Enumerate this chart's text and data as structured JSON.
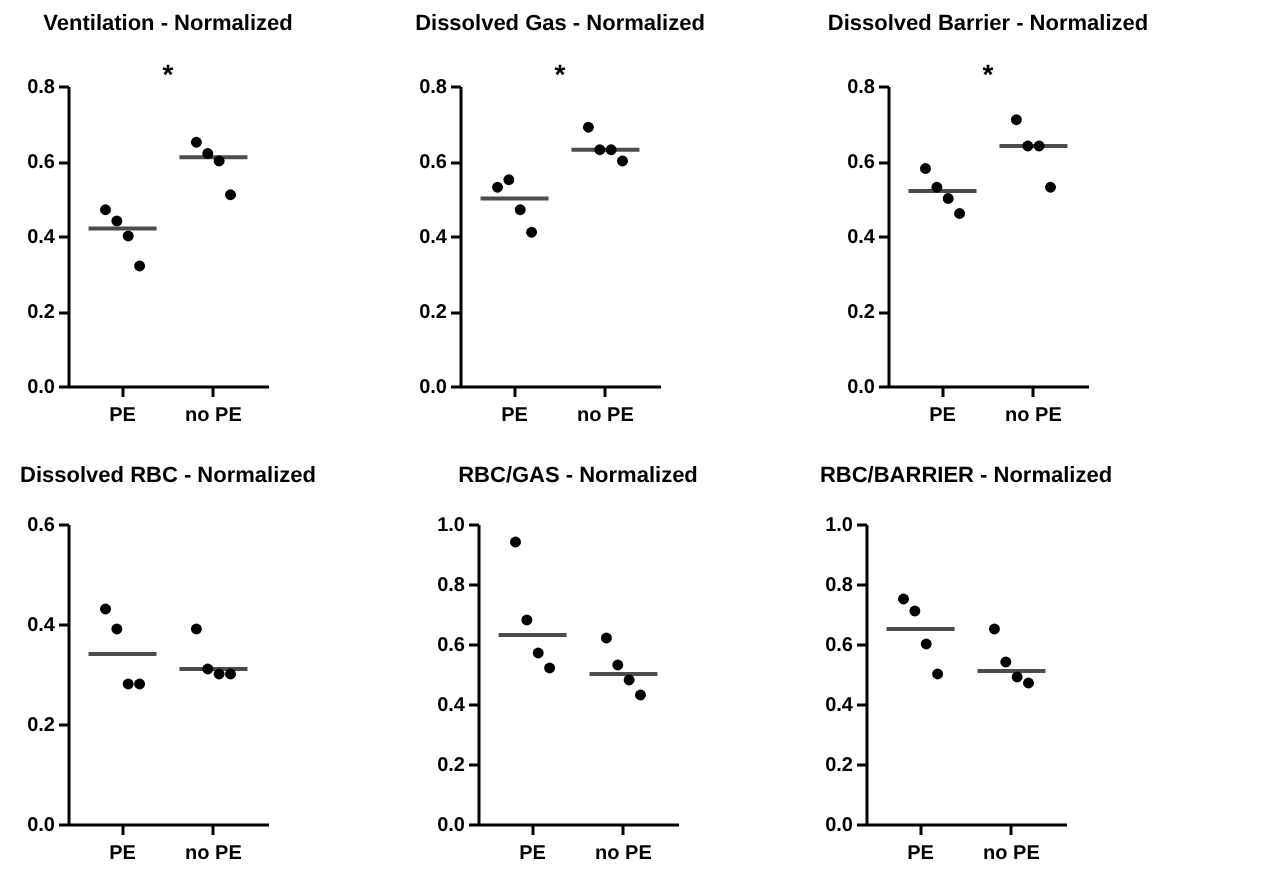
{
  "chart_data": [
    {
      "type": "box",
      "title": "Ventilation - Normalized",
      "categories": [
        "PE",
        "no PE"
      ],
      "boxes": [
        {
          "low": 0.42,
          "q1": 0.42,
          "median": 0.42,
          "q3": 0.42,
          "high": 0.42
        },
        {
          "low": 0.61,
          "q1": 0.61,
          "median": 0.61,
          "q3": 0.61,
          "high": 0.61
        }
      ],
      "series": [
        {
          "type": "scatter",
          "color": "#000000",
          "x": [
            "PE",
            "PE",
            "PE",
            "PE",
            "no PE",
            "no PE",
            "no PE",
            "no PE"
          ],
          "values": [
            0.47,
            0.44,
            0.4,
            0.32,
            0.65,
            0.62,
            0.6,
            0.51
          ]
        }
      ],
      "ylim": [
        0,
        0.8
      ],
      "yticks": [
        {
          "value": 0,
          "label": "0.0"
        },
        {
          "value": 0.2,
          "label": "0.2"
        },
        {
          "value": 0.4,
          "label": "0.4"
        },
        {
          "value": 0.6,
          "label": "0.6"
        },
        {
          "value": 0.8,
          "label": "0.8"
        }
      ],
      "grid": false,
      "marker": "circle",
      "annotations": [
        "*"
      ]
    },
    {
      "type": "box",
      "title": "Dissolved Gas - Normalized",
      "categories": [
        "PE",
        "no PE"
      ],
      "boxes": [
        {
          "low": 0.5,
          "q1": 0.5,
          "median": 0.5,
          "q3": 0.5,
          "high": 0.5
        },
        {
          "low": 0.63,
          "q1": 0.63,
          "median": 0.63,
          "q3": 0.63,
          "high": 0.63
        }
      ],
      "series": [
        {
          "type": "scatter",
          "color": "#000000",
          "x": [
            "PE",
            "PE",
            "PE",
            "PE",
            "no PE",
            "no PE",
            "no PE",
            "no PE"
          ],
          "values": [
            0.53,
            0.55,
            0.47,
            0.41,
            0.69,
            0.63,
            0.63,
            0.6
          ]
        }
      ],
      "ylim": [
        0,
        0.8
      ],
      "yticks": [
        {
          "value": 0,
          "label": "0.0"
        },
        {
          "value": 0.2,
          "label": "0.2"
        },
        {
          "value": 0.4,
          "label": "0.4"
        },
        {
          "value": 0.6,
          "label": "0.6"
        },
        {
          "value": 0.8,
          "label": "0.8"
        }
      ],
      "grid": false,
      "marker": "circle",
      "annotations": [
        "*"
      ]
    },
    {
      "type": "box",
      "title": "Dissolved Barrier - Normalized",
      "categories": [
        "PE",
        "no PE"
      ],
      "boxes": [
        {
          "low": 0.52,
          "q1": 0.52,
          "median": 0.52,
          "q3": 0.52,
          "high": 0.52
        },
        {
          "low": 0.64,
          "q1": 0.64,
          "median": 0.64,
          "q3": 0.64,
          "high": 0.64
        }
      ],
      "series": [
        {
          "type": "scatter",
          "color": "#000000",
          "x": [
            "PE",
            "PE",
            "PE",
            "PE",
            "no PE",
            "no PE",
            "no PE",
            "no PE"
          ],
          "values": [
            0.58,
            0.53,
            0.5,
            0.46,
            0.71,
            0.64,
            0.64,
            0.53
          ]
        }
      ],
      "ylim": [
        0,
        0.8
      ],
      "yticks": [
        {
          "value": 0,
          "label": "0.0"
        },
        {
          "value": 0.2,
          "label": "0.2"
        },
        {
          "value": 0.4,
          "label": "0.4"
        },
        {
          "value": 0.6,
          "label": "0.6"
        },
        {
          "value": 0.8,
          "label": "0.8"
        }
      ],
      "grid": false,
      "marker": "circle",
      "annotations": [
        "*"
      ]
    },
    {
      "type": "box",
      "title": "Dissolved RBC - Normalized",
      "categories": [
        "PE",
        "no PE"
      ],
      "boxes": [
        {
          "low": 0.34,
          "q1": 0.34,
          "median": 0.34,
          "q3": 0.34,
          "high": 0.34
        },
        {
          "low": 0.31,
          "q1": 0.31,
          "median": 0.31,
          "q3": 0.31,
          "high": 0.31
        }
      ],
      "series": [
        {
          "type": "scatter",
          "color": "#000000",
          "x": [
            "PE",
            "PE",
            "PE",
            "PE",
            "no PE",
            "no PE",
            "no PE",
            "no PE"
          ],
          "values": [
            0.43,
            0.39,
            0.28,
            0.28,
            0.39,
            0.31,
            0.3,
            0.3
          ]
        }
      ],
      "ylim": [
        0,
        0.6
      ],
      "yticks": [
        {
          "value": 0,
          "label": "0.0"
        },
        {
          "value": 0.2,
          "label": "0.2"
        },
        {
          "value": 0.4,
          "label": "0.4"
        },
        {
          "value": 0.6,
          "label": "0.6"
        }
      ],
      "grid": false,
      "marker": "circle"
    },
    {
      "type": "box",
      "title": "RBC/GAS - Normalized",
      "categories": [
        "PE",
        "no PE"
      ],
      "boxes": [
        {
          "low": 0.63,
          "q1": 0.63,
          "median": 0.63,
          "q3": 0.63,
          "high": 0.63
        },
        {
          "low": 0.5,
          "q1": 0.5,
          "median": 0.5,
          "q3": 0.5,
          "high": 0.5
        }
      ],
      "series": [
        {
          "type": "scatter",
          "color": "#000000",
          "x": [
            "PE",
            "PE",
            "PE",
            "PE",
            "no PE",
            "no PE",
            "no PE",
            "no PE"
          ],
          "values": [
            0.94,
            0.68,
            0.57,
            0.52,
            0.62,
            0.53,
            0.48,
            0.43
          ]
        }
      ],
      "ylim": [
        0,
        1
      ],
      "yticks": [
        {
          "value": 0,
          "label": "0.0"
        },
        {
          "value": 0.2,
          "label": "0.2"
        },
        {
          "value": 0.4,
          "label": "0.4"
        },
        {
          "value": 0.6,
          "label": "0.6"
        },
        {
          "value": 0.8,
          "label": "0.8"
        },
        {
          "value": 1,
          "label": "1.0"
        }
      ],
      "grid": false,
      "marker": "circle"
    },
    {
      "type": "box",
      "title": "RBC/BARRIER - Normalized",
      "categories": [
        "PE",
        "no PE"
      ],
      "boxes": [
        {
          "low": 0.65,
          "q1": 0.65,
          "median": 0.65,
          "q3": 0.65,
          "high": 0.65
        },
        {
          "low": 0.51,
          "q1": 0.51,
          "median": 0.51,
          "q3": 0.51,
          "high": 0.51
        }
      ],
      "series": [
        {
          "type": "scatter",
          "color": "#000000",
          "x": [
            "PE",
            "PE",
            "PE",
            "PE",
            "no PE",
            "no PE",
            "no PE",
            "no PE"
          ],
          "values": [
            0.75,
            0.71,
            0.6,
            0.5,
            0.65,
            0.54,
            0.49,
            0.47
          ]
        }
      ],
      "ylim": [
        0,
        1
      ],
      "yticks": [
        {
          "value": 0,
          "label": "0.0"
        },
        {
          "value": 0.2,
          "label": "0.2"
        },
        {
          "value": 0.4,
          "label": "0.4"
        },
        {
          "value": 0.6,
          "label": "0.6"
        },
        {
          "value": 0.8,
          "label": "0.8"
        },
        {
          "value": 1,
          "label": "1.0"
        }
      ],
      "grid": false,
      "marker": "circle"
    }
  ]
}
